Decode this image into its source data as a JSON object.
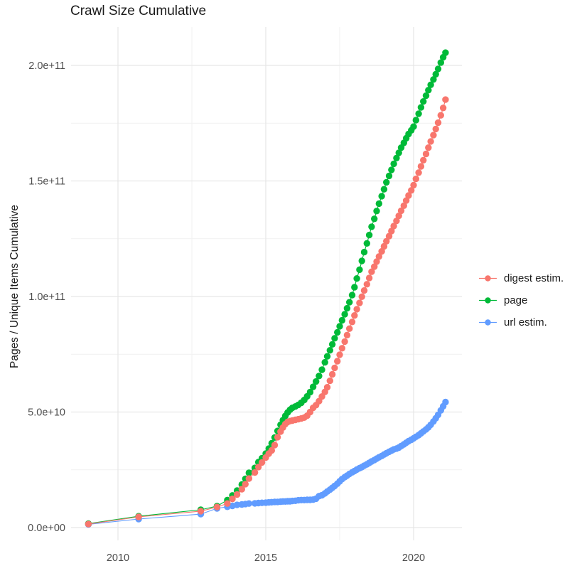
{
  "chart_data": {
    "type": "line",
    "title": "Crawl Size Cumulative",
    "xlabel": "",
    "ylabel": "Pages / Unique Items Cumulative",
    "value_unit": "billions (1e9) of pages / unique items",
    "legend_position": "right",
    "x_axis": {
      "range": [
        2008.4,
        2021.64
      ],
      "major_ticks": [
        {
          "value": 2010,
          "label": "2010"
        },
        {
          "value": 2015,
          "label": "2015"
        },
        {
          "value": 2020,
          "label": "2020"
        }
      ],
      "minor_ticks": [
        2012.5,
        2017.5
      ]
    },
    "y_axis": {
      "range_billions": [
        0,
        216
      ],
      "major_ticks": [
        {
          "value_billions": 0,
          "label": "0.0e+00"
        },
        {
          "value_billions": 50,
          "label": "5.0e+10"
        },
        {
          "value_billions": 100,
          "label": "1.0e+11"
        },
        {
          "value_billions": 150,
          "label": "1.5e+11"
        },
        {
          "value_billions": 200,
          "label": "2.0e+11"
        }
      ],
      "minor_ticks_billions": [
        25,
        75,
        125,
        175
      ]
    },
    "x": [
      2009.0,
      2010.7,
      2012.8,
      2013.35,
      2013.7,
      2013.87,
      2014.03,
      2014.19,
      2014.31,
      2014.43,
      2014.63,
      2014.75,
      2014.87,
      2015.0,
      2015.1,
      2015.2,
      2015.3,
      2015.4,
      2015.5,
      2015.58,
      2015.66,
      2015.74,
      2015.82,
      2015.9,
      2016.0,
      2016.1,
      2016.2,
      2016.3,
      2016.4,
      2016.5,
      2016.6,
      2016.7,
      2016.8,
      2016.9,
      2017.0,
      2017.08,
      2017.17,
      2017.25,
      2017.33,
      2017.42,
      2017.5,
      2017.58,
      2017.67,
      2017.75,
      2017.83,
      2017.92,
      2018.0,
      2018.08,
      2018.17,
      2018.25,
      2018.33,
      2018.42,
      2018.5,
      2018.58,
      2018.67,
      2018.75,
      2018.83,
      2018.92,
      2019.0,
      2019.08,
      2019.17,
      2019.25,
      2019.33,
      2019.42,
      2019.5,
      2019.58,
      2019.67,
      2019.75,
      2019.83,
      2019.92,
      2020.0,
      2020.08,
      2020.17,
      2020.25,
      2020.33,
      2020.42,
      2020.5,
      2020.58,
      2020.67,
      2020.75,
      2020.83,
      2020.92,
      2021.0,
      2021.08
    ],
    "series": [
      {
        "name": "digest estim.",
        "color": "#F8766D",
        "values": [
          1.5,
          4.6,
          7.1,
          8.9,
          10.4,
          12.4,
          14.3,
          16.6,
          18.8,
          21.2,
          23.8,
          26.2,
          28.2,
          30.3,
          32.0,
          33.4,
          35.7,
          39.1,
          41.5,
          43.3,
          44.8,
          45.7,
          46.1,
          46.3,
          46.6,
          46.9,
          47.2,
          47.6,
          48.4,
          50.0,
          51.8,
          53.0,
          54.7,
          56.7,
          58.7,
          60.7,
          63.5,
          66.3,
          69.1,
          72.0,
          74.8,
          77.6,
          80.5,
          83.3,
          86.1,
          89.0,
          91.8,
          94.5,
          97.2,
          99.9,
          102.6,
          105.3,
          108.0,
          110.7,
          112.9,
          115.1,
          117.3,
          119.5,
          121.7,
          123.9,
          126.1,
          128.3,
          130.5,
          132.7,
          134.9,
          137.1,
          139.3,
          141.5,
          143.7,
          145.9,
          148.2,
          150.9,
          153.6,
          156.3,
          159.0,
          161.7,
          164.4,
          167.1,
          169.8,
          172.5,
          175.2,
          178.4,
          181.6,
          185.2
        ]
      },
      {
        "name": "page",
        "color": "#00BA38",
        "values": [
          1.7,
          4.9,
          7.7,
          9.3,
          11.9,
          13.9,
          16.0,
          18.6,
          21.1,
          23.7,
          25.8,
          28.3,
          30.0,
          32.0,
          34.2,
          36.5,
          39.0,
          41.8,
          44.5,
          46.5,
          48.3,
          49.8,
          51.0,
          51.8,
          52.4,
          53.1,
          54.0,
          55.2,
          56.8,
          58.6,
          60.9,
          63.2,
          65.6,
          68.3,
          71.5,
          74.1,
          76.7,
          79.3,
          81.9,
          84.5,
          87.1,
          89.7,
          92.3,
          94.9,
          97.5,
          100.6,
          104.0,
          107.8,
          111.6,
          115.4,
          119.2,
          123.0,
          126.6,
          130.2,
          133.6,
          137.0,
          140.2,
          143.4,
          146.4,
          149.4,
          152.2,
          154.8,
          157.4,
          159.9,
          162.2,
          164.4,
          166.5,
          168.5,
          170.3,
          171.9,
          173.5,
          176.3,
          179.1,
          181.8,
          184.4,
          186.9,
          189.3,
          191.6,
          193.9,
          196.2,
          198.5,
          201.2,
          203.5,
          205.5
        ]
      },
      {
        "name": "url estim.",
        "color": "#619CFF",
        "values": [
          1.4,
          3.7,
          5.8,
          8.3,
          9.0,
          9.4,
          9.8,
          10.0,
          10.2,
          10.4,
          10.5,
          10.6,
          10.7,
          10.8,
          10.9,
          11.0,
          11.1,
          11.1,
          11.2,
          11.3,
          11.3,
          11.4,
          11.4,
          11.5,
          11.6,
          11.8,
          11.9,
          11.9,
          12.0,
          12.0,
          12.1,
          12.5,
          13.6,
          14.0,
          14.8,
          15.6,
          16.4,
          17.2,
          18.0,
          19.0,
          20.0,
          21.0,
          21.8,
          22.5,
          23.2,
          23.9,
          24.5,
          25.1,
          25.7,
          26.2,
          26.8,
          27.4,
          28.0,
          28.6,
          29.2,
          29.8,
          30.4,
          31.0,
          31.6,
          32.2,
          32.8,
          33.3,
          33.8,
          34.2,
          34.6,
          35.3,
          36.0,
          36.7,
          37.4,
          38.0,
          38.6,
          39.3,
          40.0,
          40.8,
          41.6,
          42.5,
          43.4,
          44.5,
          45.9,
          47.3,
          48.8,
          50.7,
          52.5,
          54.3
        ]
      }
    ],
    "theme": {
      "background": "#FFFFFF",
      "grid_major_color": "#E7E7E7",
      "grid_minor_color": "#F1F1F1",
      "axis_text_color": "#4D4D4D",
      "title_color": "#1B1B1B"
    }
  }
}
